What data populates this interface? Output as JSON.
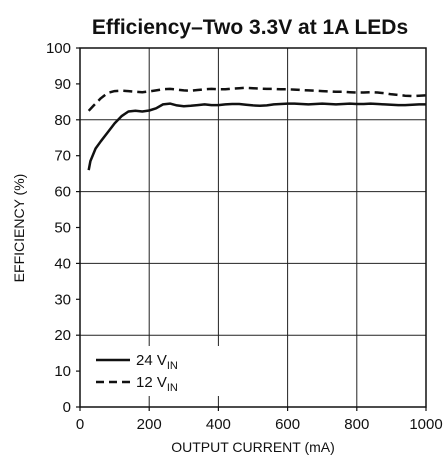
{
  "chart_data": {
    "type": "line",
    "title": "Efficiency–Two 3.3V at 1A LEDs",
    "xlabel": "OUTPUT CURRENT (mA)",
    "ylabel": "EFFICIENCY (%)",
    "xlim": [
      0,
      1000
    ],
    "ylim": [
      0,
      100
    ],
    "x_ticks": [
      "0",
      "200",
      "400",
      "600",
      "800",
      "1000"
    ],
    "y_ticks": [
      "0",
      "10",
      "20",
      "30",
      "40",
      "50",
      "60",
      "70",
      "80",
      "90",
      "100"
    ],
    "grid": true,
    "legend_position": "bottom-left",
    "series": [
      {
        "name": "24 V",
        "name_sub": "IN",
        "style": "solid",
        "color": "#111111",
        "points": [
          [
            25,
            66
          ],
          [
            30,
            68.5
          ],
          [
            45,
            72
          ],
          [
            60,
            74
          ],
          [
            80,
            76.5
          ],
          [
            100,
            79
          ],
          [
            120,
            81
          ],
          [
            140,
            82.3
          ],
          [
            160,
            82.5
          ],
          [
            180,
            82.3
          ],
          [
            200,
            82.6
          ],
          [
            220,
            83.2
          ],
          [
            240,
            84.3
          ],
          [
            260,
            84.5
          ],
          [
            280,
            84
          ],
          [
            300,
            83.8
          ],
          [
            320,
            83.9
          ],
          [
            340,
            84.1
          ],
          [
            360,
            84.3
          ],
          [
            380,
            84.1
          ],
          [
            400,
            84.1
          ],
          [
            420,
            84.3
          ],
          [
            440,
            84.4
          ],
          [
            460,
            84.4
          ],
          [
            480,
            84.2
          ],
          [
            500,
            84
          ],
          [
            520,
            83.9
          ],
          [
            540,
            84
          ],
          [
            560,
            84.3
          ],
          [
            580,
            84.4
          ],
          [
            600,
            84.5
          ],
          [
            620,
            84.5
          ],
          [
            640,
            84.4
          ],
          [
            660,
            84.3
          ],
          [
            680,
            84.4
          ],
          [
            700,
            84.5
          ],
          [
            720,
            84.4
          ],
          [
            740,
            84.3
          ],
          [
            760,
            84.4
          ],
          [
            780,
            84.5
          ],
          [
            800,
            84.4
          ],
          [
            820,
            84.4
          ],
          [
            840,
            84.5
          ],
          [
            860,
            84.4
          ],
          [
            880,
            84.3
          ],
          [
            900,
            84.2
          ],
          [
            920,
            84.1
          ],
          [
            940,
            84.1
          ],
          [
            960,
            84.2
          ],
          [
            980,
            84.3
          ],
          [
            1000,
            84.3
          ]
        ]
      },
      {
        "name": "12 V",
        "name_sub": "IN",
        "style": "dashed",
        "color": "#111111",
        "points": [
          [
            25,
            82.5
          ],
          [
            40,
            84
          ],
          [
            60,
            86
          ],
          [
            80,
            87.5
          ],
          [
            100,
            88
          ],
          [
            120,
            88.1
          ],
          [
            140,
            88
          ],
          [
            160,
            87.8
          ],
          [
            180,
            87.7
          ],
          [
            200,
            87.9
          ],
          [
            220,
            88.2
          ],
          [
            240,
            88.5
          ],
          [
            260,
            88.6
          ],
          [
            280,
            88.4
          ],
          [
            300,
            88.2
          ],
          [
            320,
            88.1
          ],
          [
            340,
            88.3
          ],
          [
            360,
            88.5
          ],
          [
            380,
            88.6
          ],
          [
            400,
            88.5
          ],
          [
            420,
            88.5
          ],
          [
            440,
            88.7
          ],
          [
            460,
            88.8
          ],
          [
            480,
            88.9
          ],
          [
            500,
            88.8
          ],
          [
            520,
            88.7
          ],
          [
            540,
            88.6
          ],
          [
            560,
            88.6
          ],
          [
            580,
            88.5
          ],
          [
            600,
            88.5
          ],
          [
            620,
            88.4
          ],
          [
            640,
            88.3
          ],
          [
            660,
            88.2
          ],
          [
            680,
            88.1
          ],
          [
            700,
            88
          ],
          [
            720,
            87.9
          ],
          [
            740,
            87.8
          ],
          [
            760,
            87.8
          ],
          [
            780,
            87.7
          ],
          [
            800,
            87.6
          ],
          [
            820,
            87.6
          ],
          [
            840,
            87.7
          ],
          [
            860,
            87.6
          ],
          [
            880,
            87.4
          ],
          [
            900,
            87.1
          ],
          [
            920,
            86.9
          ],
          [
            940,
            86.7
          ],
          [
            960,
            86.6
          ],
          [
            980,
            86.7
          ],
          [
            1000,
            86.8
          ]
        ]
      }
    ]
  }
}
